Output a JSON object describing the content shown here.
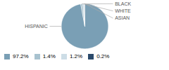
{
  "chart_data": {
    "type": "pie",
    "categories": [
      "HISPANIC",
      "BLACK",
      "WHITE",
      "ASIAN"
    ],
    "values": [
      97.2,
      1.4,
      1.2,
      0.2
    ],
    "value_labels": [
      "97.2%",
      "1.4%",
      "1.2%",
      "0.2%"
    ],
    "colors": [
      "#7a9fb5",
      "#a8c2cf",
      "#cddde6",
      "#2b4a6b"
    ],
    "legend": "lower left"
  }
}
